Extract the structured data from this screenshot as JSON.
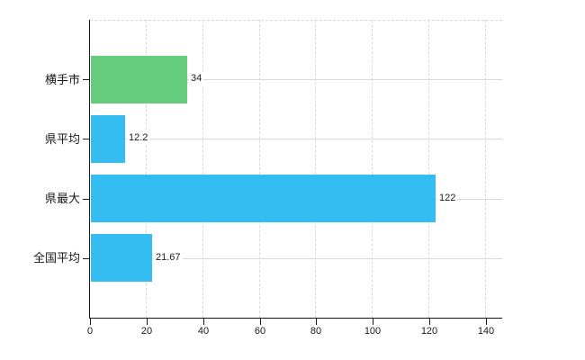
{
  "chart_data": {
    "type": "bar",
    "orientation": "horizontal",
    "categories": [
      "横手市",
      "県平均",
      "県最大",
      "全国平均"
    ],
    "values": [
      34,
      12.2,
      122,
      21.67
    ],
    "value_labels": [
      "34",
      "12.2",
      "122",
      "21.67"
    ],
    "bar_colors": [
      "#65cb7d",
      "#33bdf0",
      "#33bdf0",
      "#33bdf0"
    ],
    "x_ticks": [
      0,
      20,
      40,
      60,
      80,
      100,
      120,
      140
    ],
    "x_tick_labels": [
      "0",
      "20",
      "40",
      "60",
      "80",
      "100",
      "120",
      "140"
    ],
    "xlim": [
      0,
      146
    ],
    "grid": {
      "vertical": "dashed",
      "horizontal": "solid"
    },
    "legend": "none"
  },
  "colors": {
    "bar_blue": "#33bdf0",
    "bar_green": "#65cb7d",
    "grid": "#d9d9d9",
    "axis": "#1a1a1a",
    "background": "#ffffff"
  }
}
